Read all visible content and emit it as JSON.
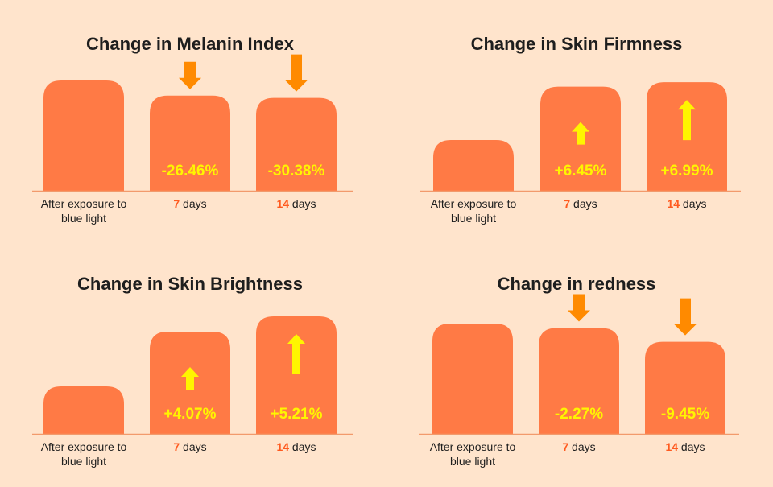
{
  "colors": {
    "background": "#FFE4CC",
    "bar": "#FF7A45",
    "axis": "#F29A6C",
    "value_text": "#FFF500",
    "arrow_down": "#FF8A00",
    "arrow_up": "#FFF500",
    "highlight_text": "#FF5A1F",
    "text": "#1E1E1E"
  },
  "chart_data": [
    {
      "type": "bar",
      "title": "Change in Melanin Index",
      "categories": [
        "After exposure to blue light",
        "7 days",
        "14 days"
      ],
      "category_lines": [
        [
          "After exposure to",
          "blue light"
        ],
        [
          "7",
          " days"
        ],
        [
          "14",
          " days"
        ]
      ],
      "values": [
        100,
        73.54,
        69.62
      ],
      "value_labels": [
        "",
        "-26.46%",
        "-30.38%"
      ],
      "arrows": [
        "none",
        "down",
        "down"
      ],
      "ylim": [
        0,
        100
      ]
    },
    {
      "type": "bar",
      "title": "Change in Skin Firmness",
      "categories": [
        "After exposure to blue light",
        "7 days",
        "14 days"
      ],
      "category_lines": [
        [
          "After exposure to",
          "blue light"
        ],
        [
          "7",
          " days"
        ],
        [
          "14",
          " days"
        ]
      ],
      "values": [
        100,
        106.45,
        106.99
      ],
      "value_labels": [
        "",
        "+6.45%",
        "+6.99%"
      ],
      "arrows": [
        "none",
        "up",
        "up"
      ],
      "ylim": [
        100,
        107
      ]
    },
    {
      "type": "bar",
      "title": "Change in Skin Brightness",
      "categories": [
        "After exposure to blue light",
        "7 days",
        "14 days"
      ],
      "category_lines": [
        [
          "After exposure to",
          "blue light"
        ],
        [
          "7",
          " days"
        ],
        [
          "14",
          " days"
        ]
      ],
      "values": [
        100,
        104.07,
        105.21
      ],
      "value_labels": [
        "",
        "+4.07%",
        "+5.21%"
      ],
      "arrows": [
        "none",
        "up",
        "up"
      ],
      "ylim": [
        100,
        105.21
      ]
    },
    {
      "type": "bar",
      "title": "Change in redness",
      "categories": [
        "After exposure to blue light",
        "7 days",
        "14 days"
      ],
      "category_lines": [
        [
          "After exposure to",
          "blue light"
        ],
        [
          "7",
          " days"
        ],
        [
          "14",
          " days"
        ]
      ],
      "values": [
        100,
        97.73,
        90.55
      ],
      "value_labels": [
        "",
        "-2.27%",
        "-9.45%"
      ],
      "arrows": [
        "none",
        "down",
        "down"
      ],
      "ylim": [
        70,
        100
      ]
    }
  ]
}
